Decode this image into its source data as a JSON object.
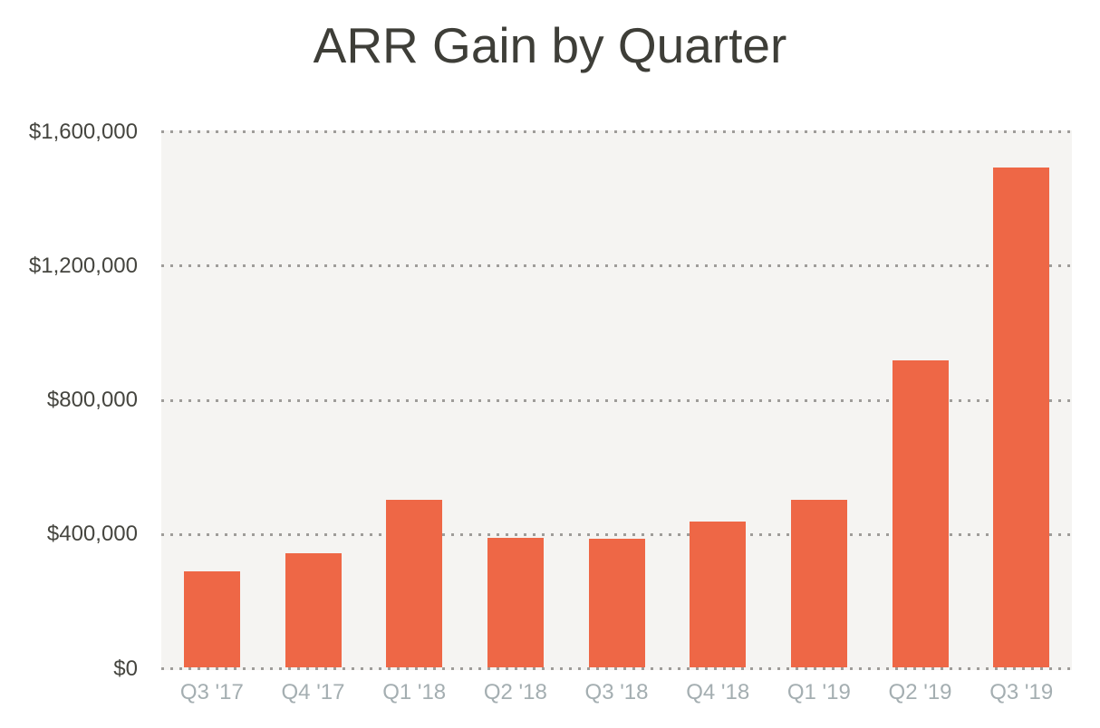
{
  "chart_data": {
    "type": "bar",
    "title": "ARR Gain by Quarter",
    "categories": [
      "Q3 '17",
      "Q4 '17",
      "Q1 '18",
      "Q2 '18",
      "Q3 '18",
      "Q4 '18",
      "Q1 '19",
      "Q2 '19",
      "Q3 '19"
    ],
    "values": [
      285000,
      340000,
      500000,
      385000,
      383000,
      435000,
      500000,
      915000,
      1490000
    ],
    "xlabel": "",
    "ylabel": "",
    "ylim": [
      0,
      1600000
    ],
    "yticks": [
      {
        "value": 0,
        "label": "$0"
      },
      {
        "value": 400000,
        "label": "$400,000"
      },
      {
        "value": 800000,
        "label": "$800,000"
      },
      {
        "value": 1200000,
        "label": "$1,200,000"
      },
      {
        "value": 1600000,
        "label": "$1,600,000"
      }
    ],
    "grid": "horizontal-dotted",
    "legend_position": "none",
    "colors": {
      "bar": "#EE6746",
      "plot_background": "#F5F4F2",
      "gridline": "#9E9C99",
      "title_text": "#3E3E38",
      "y_tick_text": "#45453F",
      "x_tick_text": "#A4AEB1"
    }
  }
}
